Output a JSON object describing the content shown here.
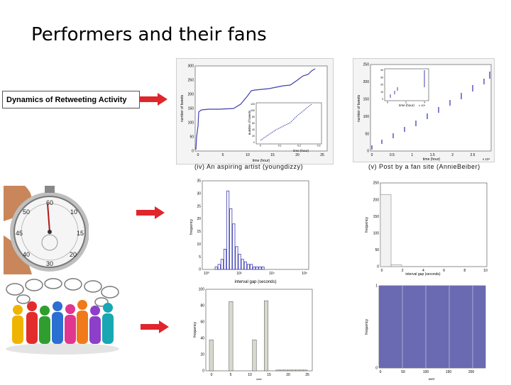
{
  "slide": {
    "title": "Performers and their fans",
    "callout": "Dynamics of Retweeting Activity"
  },
  "captions": {
    "artist": "(iv) An aspiring artist (youngdizzy)",
    "fansite": "(v) Post by a fan site (AnnieBeiber)"
  },
  "icons": [
    "stopwatch-image",
    "people-speech-bubbles-image",
    "red-arrow-icon"
  ],
  "colors": {
    "arrow": "#e0252b",
    "bars_blue": "#3f3fb0",
    "fill_blue": "#6a6ab2",
    "bars_gray": "#d8d8cc"
  },
  "chart_data": [
    {
      "type": "line",
      "xlabel": "time (hour)",
      "ylabel": "number of tweets",
      "x_ticks": [
        "0",
        "5",
        "10",
        "15",
        "20",
        "25"
      ],
      "y_ticks": [
        "0",
        "50",
        "100",
        "150",
        "200",
        "250",
        "300"
      ],
      "xlim": [
        0,
        25
      ],
      "ylim": [
        0,
        300
      ],
      "inset": {
        "xlabel": "time (hour)",
        "ylabel": "number of tweets",
        "x_ticks": [
          "0",
          "0.1",
          "0.2",
          "0.3"
        ],
        "y_ticks": [
          "0",
          "20",
          "40",
          "60",
          "80",
          "100",
          "120"
        ]
      }
    },
    {
      "type": "line",
      "xlabel": "time (hour)",
      "ylabel": "number of tweets",
      "x_ticks": [
        "0",
        "0.5",
        "1",
        "1.5",
        "2",
        "2.5"
      ],
      "y_ticks": [
        "0",
        "50",
        "100",
        "150",
        "200",
        "250"
      ],
      "xlim": [
        0,
        2.8
      ],
      "ylim": [
        0,
        250
      ],
      "axis_exponent": "x 10⁴",
      "inset": {
        "xlabel": "time (hour)",
        "ylabel": "",
        "x_ticks": [
          "0",
          "2",
          "4"
        ],
        "y_ticks": [
          "0",
          "10",
          "20",
          "30",
          "40"
        ],
        "axis_exponent": "x 10⁴"
      }
    },
    {
      "type": "bar",
      "xlabel": "interval gap (seconds)",
      "ylabel": "frequency",
      "x_ticks": [
        "10⁰",
        "10²",
        "10⁴",
        "10⁶"
      ],
      "y_ticks": [
        "0",
        "5",
        "10",
        "15",
        "20",
        "25",
        "30",
        "35"
      ],
      "ylim": [
        0,
        35
      ],
      "values": [
        1,
        2,
        4,
        8,
        31,
        24,
        18,
        9,
        6,
        4,
        3,
        2,
        2,
        1,
        1,
        1,
        1
      ]
    },
    {
      "type": "bar",
      "xlabel": "interval gap (seconds)",
      "ylabel": "frequency",
      "x_ticks": [
        "0",
        "2",
        "4",
        "6",
        "8",
        "10"
      ],
      "y_ticks": [
        "0",
        "50",
        "100",
        "150",
        "200",
        "250"
      ],
      "xlim": [
        0,
        10
      ],
      "ylim": [
        0,
        250
      ],
      "values": [
        215,
        5
      ]
    },
    {
      "type": "bar",
      "xlabel": "user",
      "ylabel": "frequency",
      "x_ticks": [
        "0",
        "5",
        "10",
        "15",
        "20",
        "25"
      ],
      "y_ticks": [
        "0",
        "20",
        "40",
        "60",
        "80",
        "100"
      ],
      "xlim": [
        0,
        25
      ],
      "ylim": [
        0,
        100
      ],
      "categories": [
        0,
        1,
        2,
        3,
        4,
        5,
        6,
        7,
        8,
        9,
        10,
        11,
        12,
        13,
        14,
        15,
        16,
        17,
        18,
        19,
        20,
        21,
        22,
        23,
        24
      ],
      "values": [
        38,
        0,
        0,
        0,
        0,
        85,
        0,
        0,
        0,
        0,
        0,
        38,
        0,
        0,
        86,
        0,
        0,
        1,
        1,
        1,
        1,
        1,
        1,
        1,
        1
      ]
    },
    {
      "type": "area",
      "xlabel": "user",
      "ylabel": "frequency",
      "x_ticks": [
        "0",
        "50",
        "100",
        "150",
        "200"
      ],
      "y_ticks": [
        "0",
        "1"
      ],
      "xlim": [
        0,
        240
      ],
      "ylim": [
        0,
        1
      ],
      "values": [
        1
      ]
    }
  ]
}
